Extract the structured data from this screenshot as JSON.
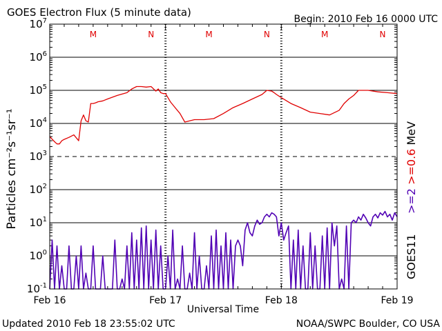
{
  "header": {
    "title": "GOES Electron Flux (5 minute data)",
    "begin": "Begin: 2010 Feb 16 0000 UTC"
  },
  "footer": {
    "updated": "Updated 2010 Feb 18 23:55:02 UTC",
    "source": "NOAA/SWPC Boulder, CO USA"
  },
  "colors": {
    "series_high": "#e00000",
    "series_low": "#5000b4",
    "marker": "#e00000",
    "axis": "#000000"
  },
  "chart_data": {
    "type": "line",
    "yscale": "log",
    "ylim": [
      0.1,
      10000000
    ],
    "xlim": [
      0,
      72
    ],
    "xunit": "hours since 2010-02-16 00:00 UTC",
    "ylabel": "Particles cm⁻²s⁻¹sr⁻¹",
    "xlabel": "Universal Time",
    "x_tick_labels": [
      "Feb 16",
      "Feb 17",
      "Feb 18",
      "Feb 19"
    ],
    "y_tick_labels": [
      {
        "base": "10",
        "exp": "7",
        "value": 10000000
      },
      {
        "base": "10",
        "exp": "6",
        "value": 1000000
      },
      {
        "base": "10",
        "exp": "5",
        "value": 100000
      },
      {
        "base": "10",
        "exp": "4",
        "value": 10000
      },
      {
        "base": "10",
        "exp": "3",
        "value": 1000
      },
      {
        "base": "10",
        "exp": "2",
        "value": 100
      },
      {
        "base": "10",
        "exp": "1",
        "value": 10
      },
      {
        "base": "10",
        "exp": "0",
        "value": 1
      },
      {
        "base": "10",
        "exp": "-1",
        "value": 0.1
      }
    ],
    "right_labels": {
      "satellite": "GOES11",
      "energy": ">=2 >=0.6 MeV"
    },
    "markers": [
      {
        "label": "M",
        "x": 9
      },
      {
        "label": "N",
        "x": 21
      },
      {
        "label": "M",
        "x": 33
      },
      {
        "label": "N",
        "x": 45
      },
      {
        "label": "M",
        "x": 57
      },
      {
        "label": "N",
        "x": 69
      }
    ],
    "series": [
      {
        "name": ">=0.6 MeV",
        "x": [
          0,
          1,
          1.5,
          2,
          2.5,
          3,
          4,
          5,
          6,
          6.5,
          7,
          7.5,
          8,
          8.5,
          9,
          9.5,
          10,
          11,
          12,
          14,
          16,
          17,
          18,
          19,
          20,
          21,
          22,
          22.5,
          23,
          23.5,
          24,
          25,
          26,
          27,
          28,
          30,
          32,
          34,
          36,
          38,
          40,
          42,
          44,
          45,
          46,
          46.5,
          47,
          48,
          50,
          52,
          54,
          56,
          58,
          60,
          61,
          62,
          63,
          64,
          66,
          68,
          70,
          72
        ],
        "values": [
          4000,
          2800,
          2400,
          2400,
          3000,
          3300,
          3800,
          4500,
          3000,
          12000,
          18000,
          12000,
          11000,
          40000,
          40000,
          42000,
          45000,
          48000,
          55000,
          70000,
          85000,
          110000,
          130000,
          130000,
          125000,
          130000,
          95000,
          110000,
          85000,
          80000,
          80000,
          45000,
          30000,
          20000,
          11000,
          13000,
          13000,
          14000,
          20000,
          30000,
          40000,
          55000,
          75000,
          100000,
          95000,
          85000,
          75000,
          60000,
          40000,
          30000,
          22000,
          20000,
          18000,
          25000,
          40000,
          55000,
          70000,
          100000,
          100000,
          90000,
          85000,
          80000
        ]
      },
      {
        "name": ">=2 MeV",
        "x": [
          0,
          0.5,
          1,
          1.5,
          2,
          2.5,
          3,
          3.5,
          4,
          4.5,
          5,
          5.5,
          6,
          6.5,
          7,
          7.5,
          8,
          8.5,
          9,
          9.5,
          10,
          10.5,
          11,
          11.5,
          12,
          12.5,
          13,
          13.5,
          14,
          14.5,
          15,
          15.5,
          16,
          16.5,
          17,
          17.5,
          18,
          18.5,
          19,
          19.5,
          20,
          20.5,
          21,
          21.5,
          22,
          22.5,
          23,
          23.5,
          24,
          24.5,
          25,
          25.5,
          26,
          26.5,
          27,
          27.5,
          28,
          28.5,
          29,
          29.5,
          30,
          30.5,
          31,
          31.5,
          32,
          32.5,
          33,
          33.5,
          34,
          34.5,
          35,
          35.5,
          36,
          36.5,
          37,
          37.5,
          38,
          38.5,
          39,
          39.5,
          40,
          40.5,
          41,
          41.5,
          42,
          42.5,
          43,
          43.5,
          44,
          44.5,
          45,
          45.5,
          46,
          46.5,
          47,
          47.5,
          48,
          48.5,
          49,
          49.5,
          50,
          50.5,
          51,
          51.5,
          52,
          52.5,
          53,
          53.5,
          54,
          54.5,
          55,
          55.5,
          56,
          56.5,
          57,
          57.5,
          58,
          58.5,
          59,
          59.5,
          60,
          60.5,
          61,
          61.5,
          62,
          62.5,
          63,
          63.5,
          64,
          64.5,
          65,
          65.5,
          66,
          66.5,
          67,
          67.5,
          68,
          68.5,
          69,
          69.5,
          70,
          70.5,
          71,
          71.5,
          72
        ],
        "values": [
          0.1,
          3,
          0.1,
          2,
          0.1,
          0.5,
          0.1,
          0.1,
          2,
          0.1,
          0.1,
          1,
          0.1,
          2,
          0.1,
          0.3,
          0.1,
          0.1,
          2,
          0.1,
          0.1,
          0.1,
          1,
          0.1,
          0.1,
          0.1,
          0.1,
          3,
          0.1,
          0.1,
          0.2,
          0.1,
          2,
          0.1,
          5,
          0.1,
          3,
          0.1,
          7,
          0.1,
          8,
          0.1,
          3,
          0.1,
          6,
          0.1,
          2,
          0.1,
          0.1,
          1,
          0.1,
          6,
          0.1,
          0.2,
          0.1,
          2,
          0.1,
          0.1,
          0.3,
          0.1,
          5,
          0.1,
          1,
          0.1,
          0.1,
          0.5,
          0.1,
          4,
          0.1,
          6,
          0.1,
          2,
          0.1,
          5,
          0.1,
          3,
          0.1,
          2,
          3,
          2,
          0.5,
          6,
          10,
          5,
          4,
          8,
          12,
          9,
          10,
          15,
          18,
          15,
          20,
          18,
          15,
          4,
          10,
          3,
          5,
          8,
          0.1,
          3,
          0.1,
          6,
          0.1,
          2,
          0.1,
          0.1,
          5,
          0.1,
          2,
          0.1,
          0.1,
          4,
          0.1,
          7,
          0.1,
          10,
          2,
          8,
          0.1,
          0.2,
          0.1,
          8,
          0.1,
          10,
          12,
          10,
          15,
          12,
          18,
          14,
          10,
          8,
          15,
          18,
          14,
          20,
          17,
          22,
          15,
          18,
          12,
          20,
          15
        ]
      }
    ]
  }
}
